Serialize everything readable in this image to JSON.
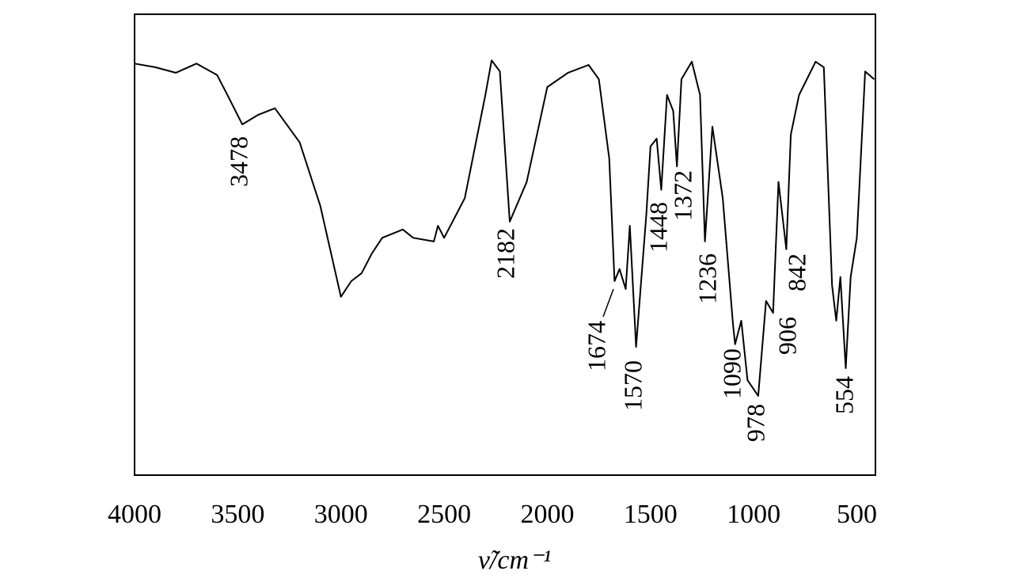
{
  "chart_data": {
    "type": "line",
    "xlabel": "ν̃/cm⁻¹",
    "x": [
      4000,
      3900,
      3800,
      3700,
      3600,
      3550,
      3478,
      3400,
      3320,
      3200,
      3100,
      3000,
      2950,
      2900,
      2850,
      2800,
      2700,
      2650,
      2550,
      2530,
      2500,
      2400,
      2300,
      2270,
      2230,
      2182,
      2100,
      2000,
      1900,
      1800,
      1750,
      1700,
      1674,
      1650,
      1620,
      1600,
      1570,
      1520,
      1500,
      1470,
      1448,
      1420,
      1390,
      1372,
      1350,
      1300,
      1260,
      1236,
      1200,
      1150,
      1100,
      1090,
      1060,
      1030,
      978,
      940,
      906,
      880,
      842,
      820,
      780,
      700,
      660,
      620,
      600,
      580,
      554,
      530,
      500,
      460,
      416
    ],
    "values": [
      89.3,
      88.5,
      87.3,
      89.3,
      86.8,
      82.5,
      76.1,
      78.2,
      79.6,
      72.2,
      58.4,
      38.7,
      42.1,
      43.8,
      48.1,
      51.5,
      53.3,
      51.5,
      50.7,
      54.1,
      51.5,
      60.1,
      82.5,
      90.0,
      87.6,
      55.0,
      63.6,
      84.2,
      87.3,
      89.0,
      85.9,
      68.7,
      42.1,
      44.7,
      40.4,
      54.1,
      27.8,
      56.7,
      71.3,
      73.0,
      61.9,
      82.5,
      79.0,
      67.0,
      85.9,
      89.7,
      82.5,
      50.7,
      75.6,
      60.1,
      32.6,
      28.4,
      33.5,
      20.6,
      17.2,
      37.8,
      35.2,
      63.6,
      49.0,
      73.9,
      82.5,
      89.7,
      88.5,
      41.2,
      33.5,
      43.0,
      23.2,
      43.0,
      51.5,
      87.6,
      85.9
    ],
    "color": "#000000",
    "xlim": [
      4000,
      410
    ],
    "ylim": [
      0,
      100
    ],
    "xticks": [
      4000,
      3500,
      3000,
      2500,
      2000,
      1500,
      1000,
      500
    ],
    "peaks": [
      3478,
      2182,
      1674,
      1570,
      1448,
      1372,
      1236,
      1090,
      978,
      906,
      842,
      554
    ]
  }
}
